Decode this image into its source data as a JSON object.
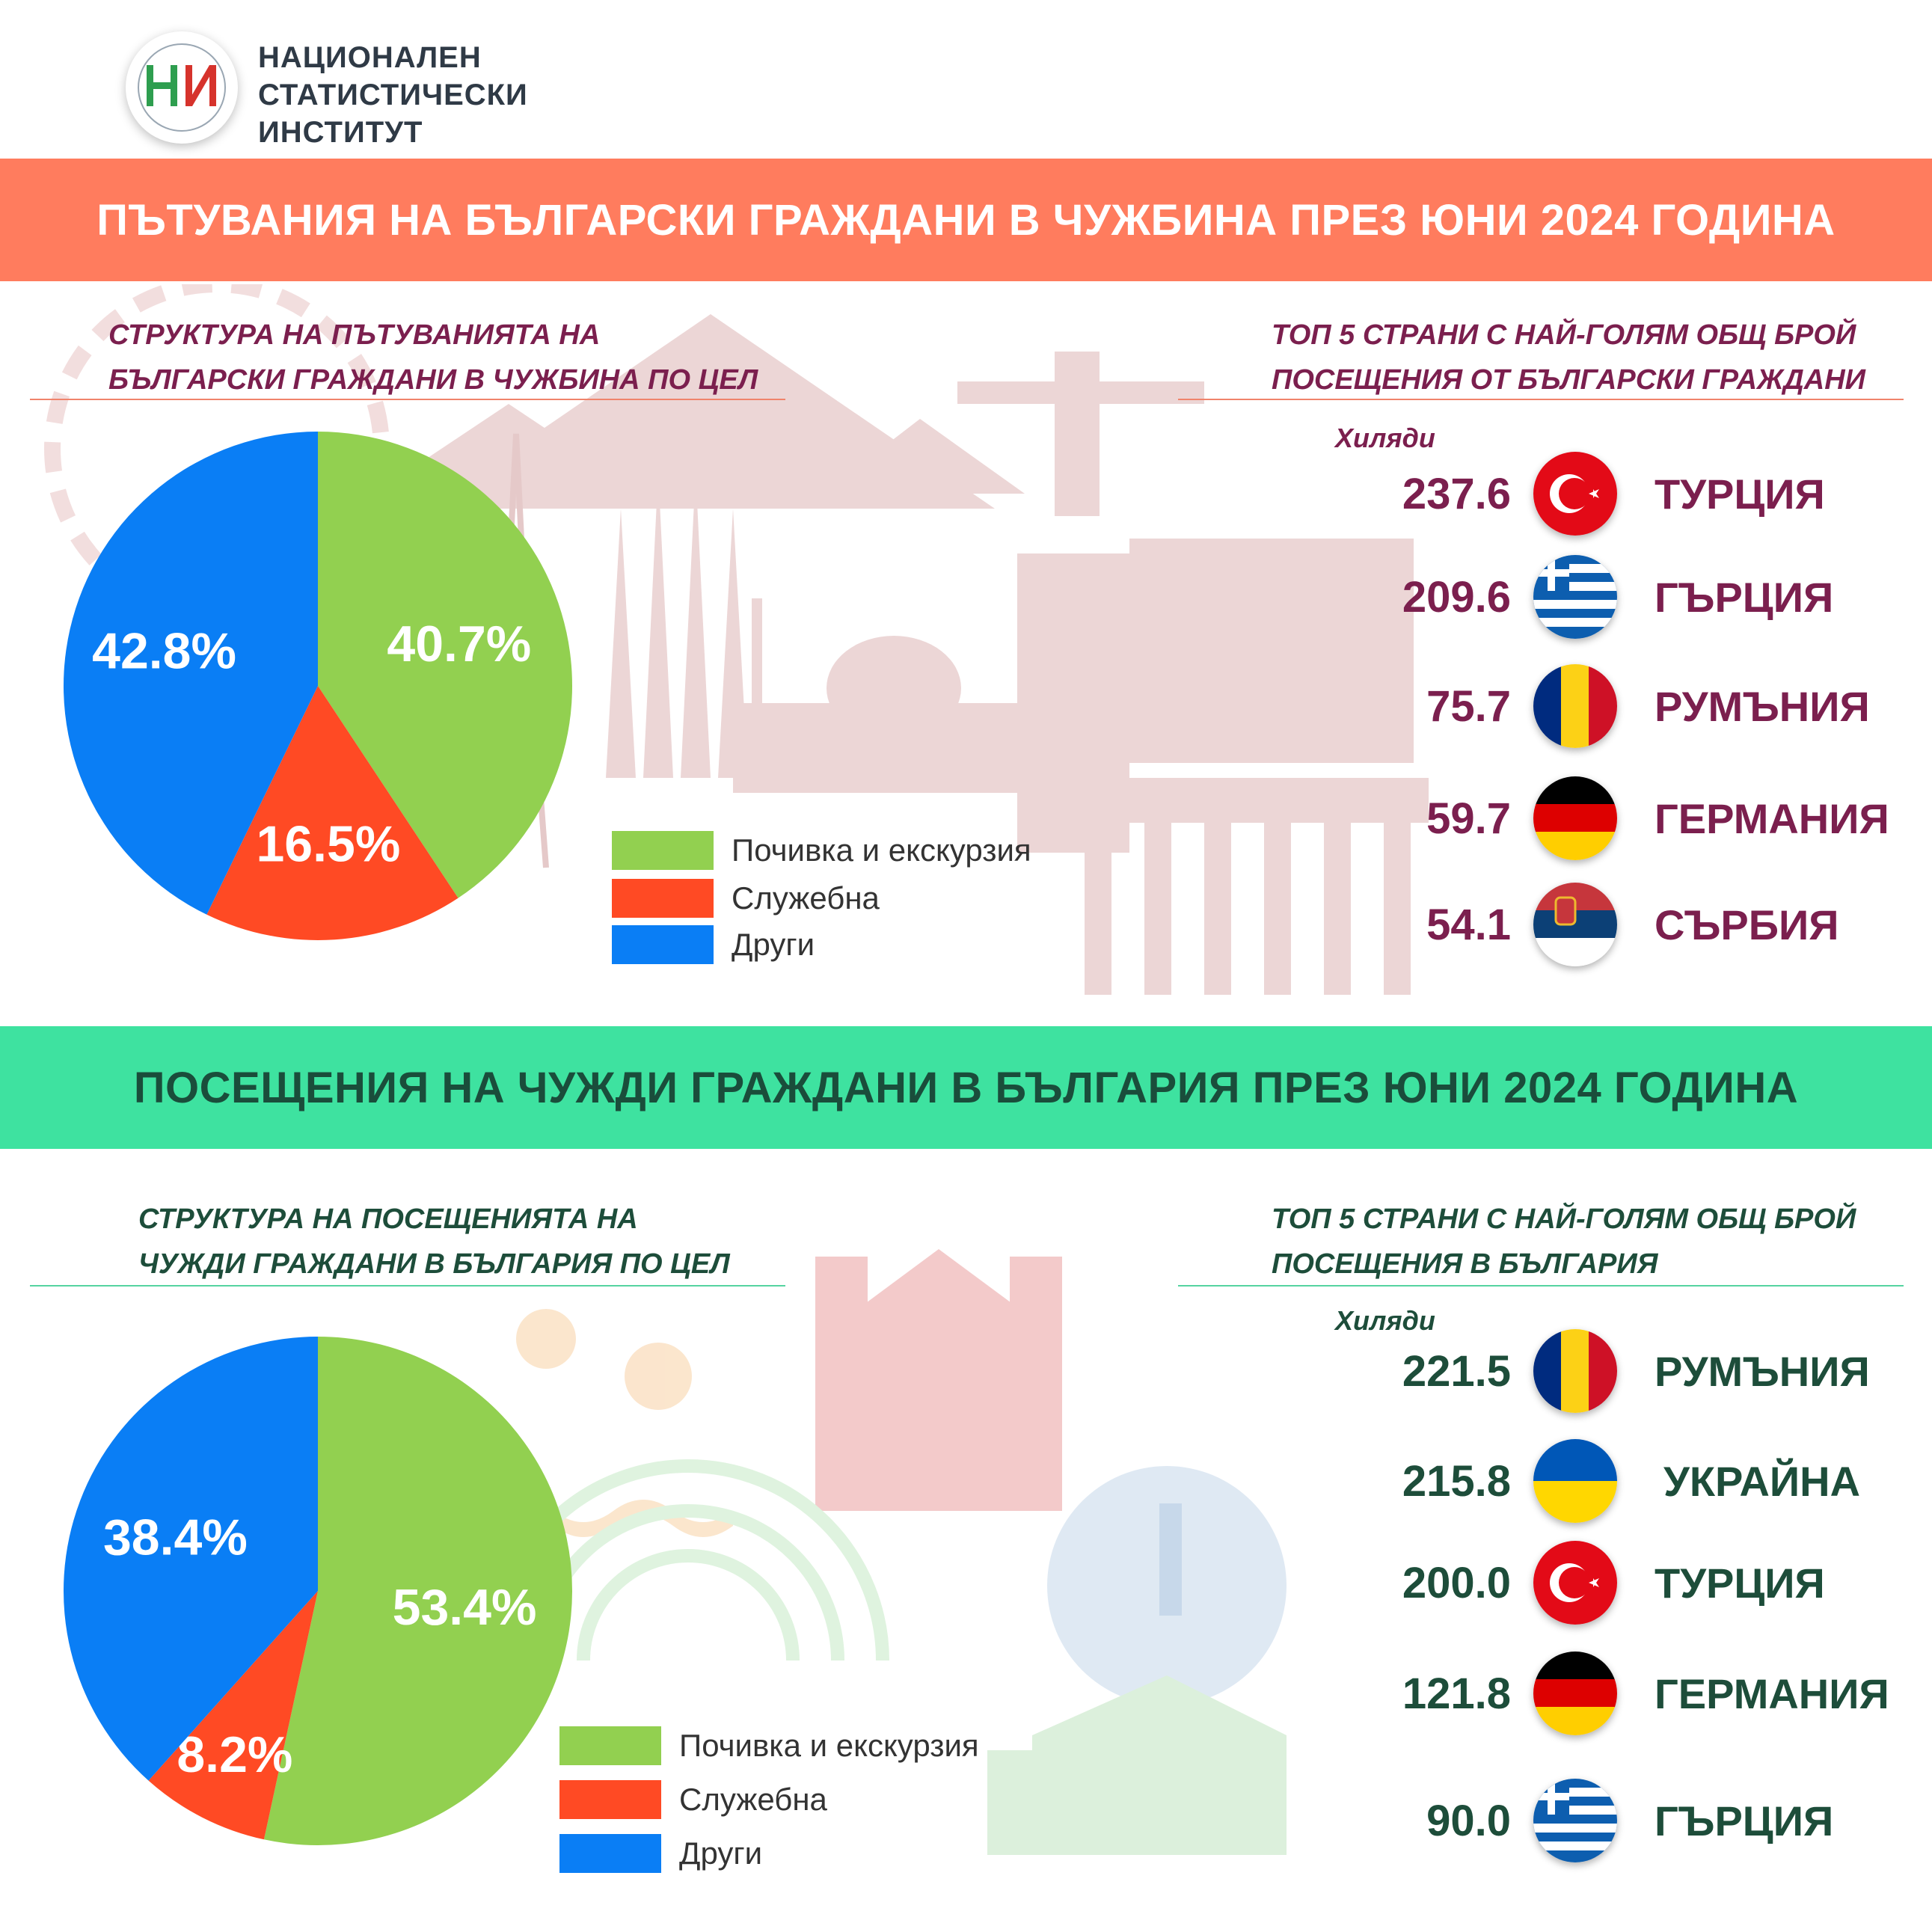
{
  "header": {
    "logo_text_lines": [
      "НАЦИОНАЛЕН",
      "СТАТИСТИЧЕСКИ",
      "ИНСТИТУТ"
    ]
  },
  "section1": {
    "banner": "ПЪТУВАНИЯ НА БЪЛГАРСКИ ГРАЖДАНИ В ЧУЖБИНА ПРЕЗ ЮНИ 2024 ГОДИНА",
    "pie_title_lines": [
      "СТРУКТУРА НА ПЪТУВАНИЯТА НА",
      "БЪЛГАРСКИ ГРАЖДАНИ В ЧУЖБИНА ПО ЦЕЛ"
    ],
    "top_title_lines": [
      "ТОП 5 СТРАНИ С НАЙ-ГОЛЯМ ОБЩ БРОЙ",
      "ПОСЕЩЕНИЯ ОТ БЪЛГАРСКИ ГРАЖДАНИ"
    ],
    "unit": "Хиляди"
  },
  "section2": {
    "banner": "ПОСЕЩЕНИЯ НА ЧУЖДИ ГРАЖДАНИ В БЪЛГАРИЯ ПРЕЗ ЮНИ 2024 ГОДИНА",
    "pie_title_lines": [
      "СТРУКТУРА НА ПОСЕЩЕНИЯТА НА",
      "ЧУЖДИ ГРАЖДАНИ В БЪЛГАРИЯ ПО ЦЕЛ"
    ],
    "top_title_lines": [
      "ТОП 5 СТРАНИ С НАЙ-ГОЛЯМ ОБЩ БРОЙ",
      "ПОСЕЩЕНИЯ В БЪЛГАРИЯ"
    ],
    "unit": "Хиляди"
  },
  "colors": {
    "green": "#92d050",
    "red": "#ff4a24",
    "blue": "#0a7ef5",
    "banner_top": "#ff7c5e",
    "banner_bottom": "#3ee2a0"
  },
  "chart_data": [
    {
      "type": "pie",
      "title": "СТРУКТУРА НА ПЪТУВАНИЯТА НА БЪЛГАРСКИ ГРАЖДАНИ В ЧУЖБИНА ПО ЦЕЛ",
      "categories": [
        "Почивка и екскурзия",
        "Служебна",
        "Други"
      ],
      "values": [
        40.7,
        16.5,
        42.8
      ],
      "labels": [
        "40.7%",
        "16.5%",
        "42.8%"
      ],
      "colors": [
        "#92d050",
        "#ff4a24",
        "#0a7ef5"
      ],
      "legend": "right"
    },
    {
      "type": "bar",
      "title": "ТОП 5 СТРАНИ С НАЙ-ГОЛЯМ ОБЩ БРОЙ ПОСЕЩЕНИЯ ОТ БЪЛГАРСКИ ГРАЖДАНИ",
      "unit": "Хиляди",
      "categories": [
        "ТУРЦИЯ",
        "ГЪРЦИЯ",
        "РУМЪНИЯ",
        "ГЕРМАНИЯ",
        "СЪРБИЯ"
      ],
      "values": [
        "237.6",
        "209.6",
        "75.7",
        "59.7",
        "54.1"
      ],
      "flags": [
        "turkey-flag",
        "greece-flag",
        "romania-flag",
        "germany-flag",
        "serbia-flag"
      ]
    },
    {
      "type": "pie",
      "title": "СТРУКТУРА НА ПОСЕЩЕНИЯТА НА ЧУЖДИ ГРАЖДАНИ В БЪЛГАРИЯ ПО ЦЕЛ",
      "categories": [
        "Почивка и екскурзия",
        "Служебна",
        "Други"
      ],
      "values": [
        53.4,
        8.2,
        38.4
      ],
      "labels": [
        "53.4%",
        "8.2%",
        "38.4%"
      ],
      "colors": [
        "#92d050",
        "#ff4a24",
        "#0a7ef5"
      ],
      "legend": "right"
    },
    {
      "type": "bar",
      "title": "ТОП 5 СТРАНИ С НАЙ-ГОЛЯМ ОБЩ БРОЙ ПОСЕЩЕНИЯ В БЪЛГАРИЯ",
      "unit": "Хиляди",
      "categories": [
        "РУМЪНИЯ",
        "УКРАЙНА",
        "ТУРЦИЯ",
        "ГЕРМАНИЯ",
        "ГЪРЦИЯ"
      ],
      "values": [
        "221.5",
        "215.8",
        "200.0",
        "121.8",
        "90.0"
      ],
      "flags": [
        "romania-flag",
        "ukraine-flag",
        "turkey-flag",
        "germany-flag",
        "greece-flag"
      ]
    }
  ]
}
